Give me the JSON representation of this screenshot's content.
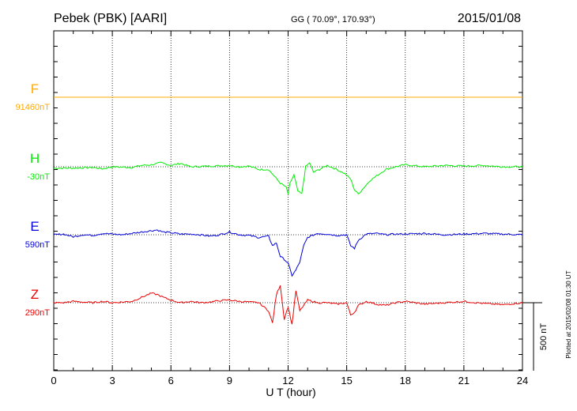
{
  "header": {
    "station": "Pebek (PBK)  [AARI]",
    "coords": "GG ( 70.09°, 170.93°)",
    "date": "2015/01/08"
  },
  "footer": {
    "plotted": "Plotted at 2015/02/08 01:30 UT"
  },
  "chart_data": {
    "type": "line",
    "xlabel": "U T (hour)",
    "xlim": [
      0,
      24
    ],
    "xticks": [
      "0",
      "3",
      "6",
      "9",
      "12",
      "15",
      "18",
      "21",
      "24"
    ],
    "scale_bar_label": "500 nT",
    "scale_bar_nT": 500,
    "series": [
      {
        "name": "F",
        "baseline": "91460nT",
        "color": "#ffaa00",
        "x": [
          0,
          24
        ],
        "y": [
          0,
          0
        ]
      },
      {
        "name": "H",
        "baseline": "-30nT",
        "color": "#00ee00",
        "x": [
          0,
          1,
          2,
          2.5,
          3,
          4,
          4.5,
          5,
          5.5,
          6,
          6.5,
          7,
          8,
          9,
          9.5,
          10,
          10.5,
          11,
          11.3,
          11.6,
          11.9,
          12.0,
          12.1,
          12.3,
          12.5,
          12.7,
          12.9,
          13.1,
          13.3,
          13.6,
          14,
          14.5,
          14.9,
          15.2,
          15.4,
          15.6,
          15.9,
          16.2,
          16.6,
          17,
          17.5,
          18,
          19,
          20,
          21,
          22,
          23,
          24
        ],
        "y": [
          -10,
          -10,
          -5,
          -15,
          0,
          -5,
          10,
          15,
          30,
          10,
          25,
          0,
          5,
          10,
          0,
          5,
          -20,
          -20,
          -70,
          -120,
          -150,
          -200,
          -120,
          -60,
          -180,
          -200,
          0,
          30,
          -40,
          -20,
          10,
          -20,
          -50,
          -90,
          -170,
          -200,
          -150,
          -100,
          -60,
          -20,
          0,
          15,
          0,
          10,
          5,
          10,
          0,
          0
        ]
      },
      {
        "name": "E",
        "baseline": "590nT",
        "color": "#0000dd",
        "x": [
          0,
          0.5,
          1,
          1.5,
          2,
          2.5,
          3,
          3.5,
          4,
          4.5,
          5,
          5.3,
          5.6,
          6,
          6.5,
          7,
          7.5,
          8,
          8.5,
          9,
          9.5,
          10,
          10.5,
          11,
          11.2,
          11.4,
          11.6,
          11.8,
          12.0,
          12.2,
          12.4,
          12.6,
          12.8,
          13.0,
          13.5,
          14,
          14.5,
          15,
          15.2,
          15.4,
          15.6,
          16,
          16.5,
          17,
          17.5,
          18,
          19,
          20,
          21,
          22,
          23,
          24
        ],
        "y": [
          0,
          5,
          -15,
          0,
          -5,
          10,
          5,
          0,
          10,
          20,
          30,
          35,
          20,
          15,
          5,
          5,
          0,
          -10,
          0,
          20,
          0,
          -5,
          -20,
          -10,
          -80,
          -60,
          -160,
          -180,
          -210,
          -300,
          -260,
          -200,
          -80,
          -20,
          10,
          5,
          -5,
          0,
          -80,
          -100,
          -40,
          5,
          10,
          0,
          5,
          5,
          10,
          0,
          5,
          10,
          5,
          0
        ]
      },
      {
        "name": "Z",
        "baseline": "290nT",
        "color": "#ee0000",
        "x": [
          0,
          0.5,
          1,
          1.5,
          2,
          2.5,
          3,
          3.5,
          4,
          4.5,
          5,
          5.3,
          5.6,
          6,
          6.5,
          7,
          7.5,
          8,
          8.5,
          9,
          9.5,
          10,
          10.5,
          11,
          11.2,
          11.4,
          11.6,
          11.8,
          12.0,
          12.2,
          12.4,
          12.6,
          12.8,
          13,
          13.5,
          14,
          14.5,
          15,
          15.2,
          15.4,
          15.6,
          16,
          16.5,
          17,
          17.5,
          18,
          19,
          20,
          21,
          22,
          23,
          24
        ],
        "y": [
          0,
          0,
          10,
          5,
          0,
          10,
          0,
          5,
          10,
          40,
          70,
          60,
          40,
          20,
          0,
          10,
          0,
          5,
          15,
          20,
          10,
          5,
          0,
          -60,
          -150,
          60,
          130,
          -120,
          -30,
          -160,
          90,
          -60,
          -20,
          20,
          0,
          0,
          -10,
          0,
          -90,
          -70,
          -20,
          10,
          -10,
          -20,
          0,
          10,
          -10,
          0,
          10,
          -5,
          -15,
          0
        ]
      }
    ]
  }
}
